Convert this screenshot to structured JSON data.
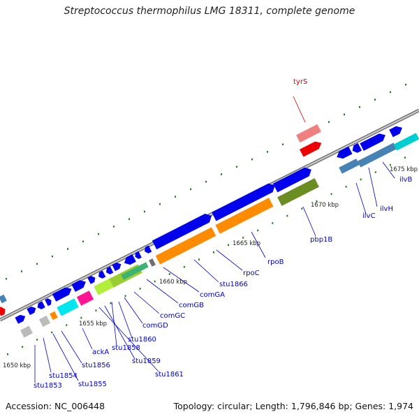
{
  "title": "Streptococcus thermophilus LMG 18311, complete genome",
  "footer": {
    "accession": "Accession: NC_006448",
    "summary": "Topology: circular; Length: 1,796,846 bp; Genes: 1,974"
  },
  "colors": {
    "backbone": "#7a7a7a",
    "forward_gene": "#0000ee",
    "label_blue": "#0000cc",
    "label_red": "#cc0000",
    "rRNA_orange": "#ff8c00",
    "tick_green": "#1a7a1a",
    "cds_green": "#6b8e23"
  },
  "kbp_ticks": [
    "1650 kbp",
    "1655 kbp",
    "1660 kbp",
    "1665 kbp",
    "1670 kbp",
    "1675 kbp"
  ],
  "gene_labels": [
    {
      "name": "tyrS",
      "color": "#cc0000"
    },
    {
      "name": "ilvB",
      "color": "#0000cc"
    },
    {
      "name": "ilvH",
      "color": "#0000cc"
    },
    {
      "name": "ilvC",
      "color": "#0000cc"
    },
    {
      "name": "pbp1B",
      "color": "#0000cc"
    },
    {
      "name": "rpoB",
      "color": "#0000cc"
    },
    {
      "name": "rpoC",
      "color": "#0000cc"
    },
    {
      "name": "stu1866",
      "color": "#0000cc"
    },
    {
      "name": "comGA",
      "color": "#0000cc"
    },
    {
      "name": "comGB",
      "color": "#0000cc"
    },
    {
      "name": "comGC",
      "color": "#0000cc"
    },
    {
      "name": "comGD",
      "color": "#0000cc"
    },
    {
      "name": "stu1860",
      "color": "#0000cc"
    },
    {
      "name": "stu1858",
      "color": "#0000cc"
    },
    {
      "name": "stu1859",
      "color": "#0000cc"
    },
    {
      "name": "stu1861",
      "color": "#0000cc"
    },
    {
      "name": "ackA",
      "color": "#0000cc"
    },
    {
      "name": "stu1856",
      "color": "#0000cc"
    },
    {
      "name": "stu1855",
      "color": "#0000cc"
    },
    {
      "name": "stu1854",
      "color": "#0000cc"
    },
    {
      "name": "stu1853",
      "color": "#0000cc"
    }
  ]
}
